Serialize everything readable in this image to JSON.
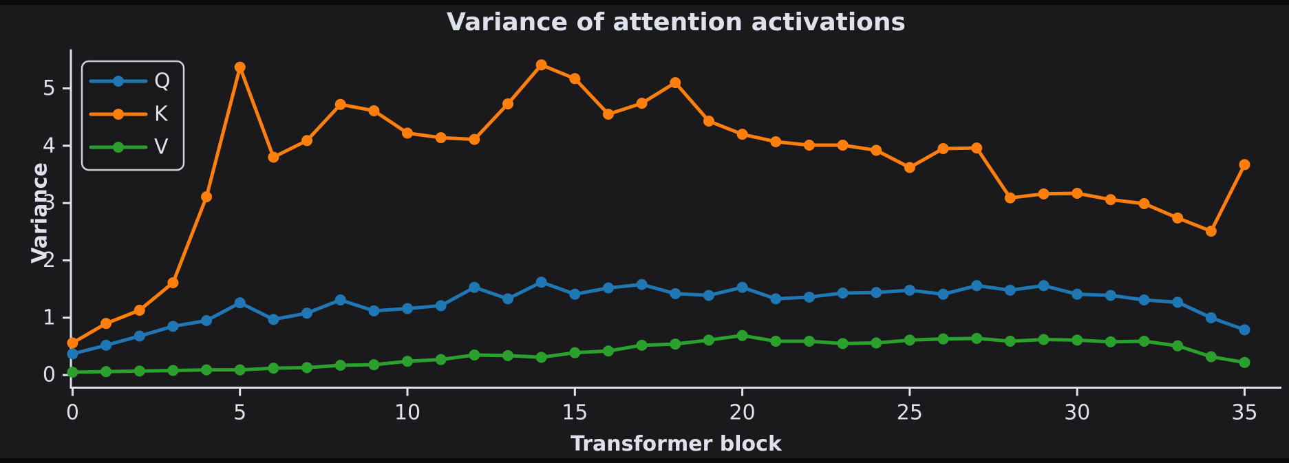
{
  "window": {
    "background": "#0b0b0c",
    "plot_background": "#1a1a1c"
  },
  "chart_data": {
    "type": "line",
    "title": "Variance of attention activations",
    "xlabel": "Transformer block",
    "ylabel": "Variance",
    "x": [
      0,
      1,
      2,
      3,
      4,
      5,
      6,
      7,
      8,
      9,
      10,
      11,
      12,
      13,
      14,
      15,
      16,
      17,
      18,
      19,
      20,
      21,
      22,
      23,
      24,
      25,
      26,
      27,
      28,
      29,
      30,
      31,
      32,
      33,
      34,
      35
    ],
    "series": [
      {
        "name": "Q",
        "color": "#1f77b4",
        "values": [
          0.37,
          0.52,
          0.68,
          0.85,
          0.95,
          1.26,
          0.97,
          1.08,
          1.31,
          1.12,
          1.16,
          1.21,
          1.53,
          1.33,
          1.62,
          1.41,
          1.52,
          1.58,
          1.42,
          1.39,
          1.53,
          1.33,
          1.36,
          1.43,
          1.44,
          1.48,
          1.41,
          1.56,
          1.48,
          1.56,
          1.41,
          1.39,
          1.31,
          1.27,
          1.0,
          0.79
        ]
      },
      {
        "name": "K",
        "color": "#ff7f0e",
        "values": [
          0.56,
          0.9,
          1.13,
          1.61,
          3.11,
          5.37,
          3.8,
          4.09,
          4.72,
          4.61,
          4.22,
          4.14,
          4.11,
          4.73,
          5.41,
          5.17,
          4.55,
          4.74,
          5.1,
          4.43,
          4.2,
          4.07,
          4.01,
          4.01,
          3.92,
          3.62,
          3.95,
          3.96,
          3.09,
          3.16,
          3.17,
          3.06,
          2.99,
          2.74,
          2.51,
          3.67
        ]
      },
      {
        "name": "V",
        "color": "#2ca02c",
        "values": [
          0.05,
          0.06,
          0.07,
          0.08,
          0.09,
          0.09,
          0.12,
          0.13,
          0.17,
          0.18,
          0.24,
          0.27,
          0.35,
          0.34,
          0.31,
          0.39,
          0.42,
          0.52,
          0.54,
          0.61,
          0.69,
          0.59,
          0.59,
          0.55,
          0.56,
          0.61,
          0.63,
          0.64,
          0.59,
          0.62,
          0.61,
          0.58,
          0.59,
          0.51,
          0.32,
          0.22
        ]
      }
    ],
    "xticks": [
      0,
      5,
      10,
      15,
      20,
      25,
      30,
      35
    ],
    "yticks": [
      0,
      1,
      2,
      3,
      4,
      5
    ],
    "xlim": [
      -0.05,
      36.1
    ],
    "ylim": [
      -0.22,
      5.68
    ],
    "legend": {
      "position": "upper left",
      "entries": [
        "Q",
        "K",
        "V"
      ]
    },
    "grid": false,
    "text_color": "#dfe2ec",
    "axis_color": "#dfe2ec"
  }
}
